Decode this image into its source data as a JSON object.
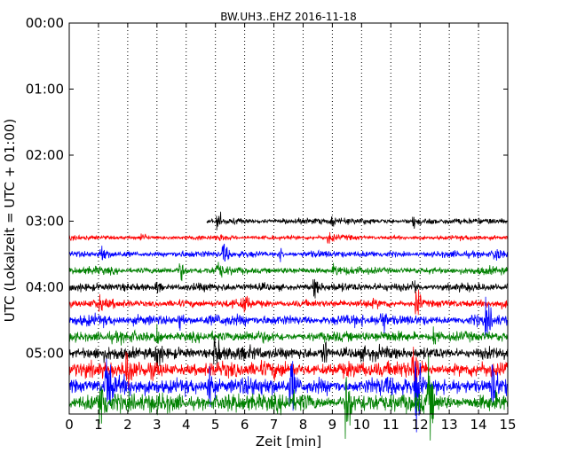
{
  "chart_data": {
    "type": "line",
    "title": "BW.UH3..EHZ 2016-11-18",
    "xlabel": "Zeit  [min]",
    "ylabel": "UTC (Lokalzeit = UTC + 01:00)",
    "xlim": [
      0,
      15
    ],
    "x_ticks": [
      "0",
      "1",
      "2",
      "3",
      "4",
      "5",
      "6",
      "7",
      "8",
      "9",
      "10",
      "11",
      "12",
      "13",
      "14",
      "15"
    ],
    "y_tick_labels": [
      "00:00",
      "01:00",
      "02:00",
      "03:00",
      "04:00",
      "05:00"
    ],
    "ylim_hours": [
      0,
      5.92
    ],
    "grid": "vertical dotted",
    "trace_interval_min": 15,
    "colors": [
      "#000000",
      "#ff0000",
      "#0000ff",
      "#008000"
    ],
    "traces": [
      {
        "start_time": "03:00",
        "start_min": 4.7,
        "end_min": 15,
        "color": "#000000",
        "amplitude": 0.45,
        "events": [
          [
            5.1,
            1.0
          ],
          [
            11.8,
            1.0
          ],
          [
            9.0,
            0.5
          ]
        ]
      },
      {
        "start_time": "03:15",
        "start_min": 0,
        "end_min": 15,
        "color": "#ff0000",
        "amplitude": 0.35,
        "events": [
          [
            2.5,
            0.7
          ],
          [
            8.9,
            0.9
          ],
          [
            5.2,
            0.5
          ]
        ]
      },
      {
        "start_time": "03:30",
        "start_min": 0,
        "end_min": 15,
        "color": "#0000ff",
        "amplitude": 0.5,
        "events": [
          [
            1.1,
            1.3
          ],
          [
            5.3,
            1.3
          ],
          [
            7.2,
            0.8
          ],
          [
            14.6,
            0.9
          ]
        ]
      },
      {
        "start_time": "03:45",
        "start_min": 0,
        "end_min": 15,
        "color": "#008000",
        "amplitude": 0.55,
        "events": [
          [
            3.8,
            1.0
          ],
          [
            5.1,
            0.9
          ],
          [
            9.1,
            0.6
          ]
        ]
      },
      {
        "start_time": "04:00",
        "start_min": 0,
        "end_min": 15,
        "color": "#000000",
        "amplitude": 0.6,
        "events": [
          [
            8.4,
            1.0
          ],
          [
            11.8,
            0.8
          ],
          [
            3.0,
            0.6
          ]
        ]
      },
      {
        "start_time": "04:15",
        "start_min": 0,
        "end_min": 15,
        "color": "#ff0000",
        "amplitude": 0.6,
        "events": [
          [
            11.9,
            1.6
          ],
          [
            6.0,
            0.8
          ],
          [
            1.0,
            0.6
          ]
        ]
      },
      {
        "start_time": "04:30",
        "start_min": 0,
        "end_min": 15,
        "color": "#0000ff",
        "amplitude": 0.8,
        "events": [
          [
            10.7,
            1.1
          ],
          [
            14.3,
            1.1
          ],
          [
            3.8,
            0.8
          ]
        ]
      },
      {
        "start_time": "04:45",
        "start_min": 0,
        "end_min": 15,
        "color": "#008000",
        "amplitude": 0.8,
        "events": [
          [
            3.0,
            0.9
          ],
          [
            12.5,
            0.8
          ]
        ]
      },
      {
        "start_time": "05:00",
        "start_min": 0,
        "end_min": 15,
        "color": "#000000",
        "amplitude": 0.95,
        "events": [
          [
            3.0,
            1.2
          ],
          [
            5.0,
            1.2
          ],
          [
            8.7,
            1.0
          ]
        ]
      },
      {
        "start_time": "05:15",
        "start_min": 0,
        "end_min": 15,
        "color": "#ff0000",
        "amplitude": 1.2,
        "events": [
          [
            11.8,
            1.2
          ],
          [
            2.0,
            1.0
          ]
        ]
      },
      {
        "start_time": "05:30",
        "start_min": 0,
        "end_min": 15,
        "color": "#0000ff",
        "amplitude": 1.3,
        "events": [
          [
            1.3,
            1.6
          ],
          [
            4.8,
            1.3
          ],
          [
            7.6,
            1.3
          ],
          [
            11.9,
            2.2
          ],
          [
            14.5,
            1.4
          ]
        ]
      },
      {
        "start_time": "05:45",
        "start_min": 0,
        "end_min": 15,
        "color": "#008000",
        "amplitude": 1.4,
        "events": [
          [
            1.1,
            1.4
          ],
          [
            9.5,
            1.6
          ],
          [
            12.3,
            1.5
          ]
        ]
      }
    ]
  }
}
